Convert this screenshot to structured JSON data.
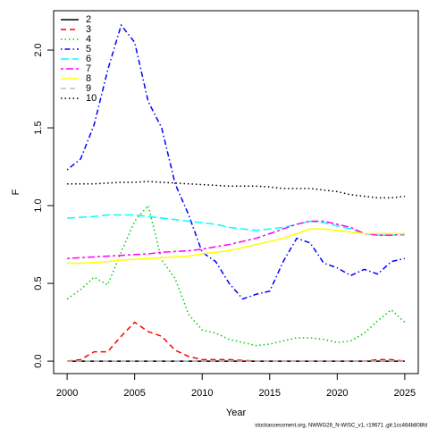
{
  "chart_data": {
    "type": "line",
    "xlabel": "Year",
    "ylabel": "F",
    "footer": "stockassessment.org, NWWG26_N-WISC_v1, r19671 ,git:1cc464b808fd",
    "x": [
      2000,
      2001,
      2002,
      2003,
      2004,
      2005,
      2006,
      2007,
      2008,
      2009,
      2010,
      2011,
      2012,
      2013,
      2014,
      2015,
      2016,
      2017,
      2018,
      2019,
      2020,
      2021,
      2022,
      2023,
      2024,
      2025
    ],
    "xlim": [
      1999,
      2026
    ],
    "xticks": [
      2000,
      2005,
      2010,
      2015,
      2020,
      2025
    ],
    "ylim": [
      -0.08,
      2.253
    ],
    "yticks": [
      {
        "value": 0,
        "label": "0.0"
      },
      {
        "value": 0.5,
        "label": "0.5"
      },
      {
        "value": 1,
        "label": "1.0"
      },
      {
        "value": 1.5,
        "label": "1.5"
      },
      {
        "value": 2,
        "label": "2.0"
      }
    ],
    "legend": "top-left",
    "series": [
      {
        "name": "2",
        "color": "#000000",
        "dash": "none",
        "values": [
          0,
          0,
          0,
          0,
          0,
          0,
          0,
          0,
          0,
          0,
          0,
          0,
          0,
          0,
          0,
          0,
          0,
          0,
          0,
          0,
          0,
          0,
          0,
          0,
          0,
          0
        ]
      },
      {
        "name": "3",
        "color": "#ff0000",
        "dash": "6,4",
        "values": [
          0,
          0.01,
          0.06,
          0.06,
          0.16,
          0.25,
          0.19,
          0.16,
          0.07,
          0.03,
          0.01,
          0.01,
          0.01,
          0.005,
          0,
          0,
          0,
          0,
          0,
          0,
          0,
          0,
          0,
          0.01,
          0.01,
          0
        ]
      },
      {
        "name": "4",
        "color": "#00cd00",
        "dash": "1.5,3",
        "values": [
          0.4,
          0.46,
          0.54,
          0.49,
          0.7,
          0.9,
          1.0,
          0.65,
          0.53,
          0.3,
          0.2,
          0.18,
          0.14,
          0.12,
          0.1,
          0.11,
          0.13,
          0.15,
          0.15,
          0.14,
          0.12,
          0.13,
          0.18,
          0.26,
          0.33,
          0.25
        ]
      },
      {
        "name": "5",
        "color": "#0000ff",
        "dash": "1.5,3,6,3",
        "values": [
          1.23,
          1.3,
          1.52,
          1.87,
          2.16,
          2.05,
          1.67,
          1.5,
          1.14,
          0.94,
          0.7,
          0.64,
          0.5,
          0.4,
          0.43,
          0.45,
          0.64,
          0.79,
          0.76,
          0.63,
          0.6,
          0.55,
          0.59,
          0.56,
          0.64,
          0.66
        ]
      },
      {
        "name": "6",
        "color": "#00ffff",
        "dash": "9,4",
        "values": [
          0.92,
          0.925,
          0.93,
          0.94,
          0.94,
          0.94,
          0.93,
          0.92,
          0.91,
          0.9,
          0.89,
          0.88,
          0.86,
          0.85,
          0.84,
          0.85,
          0.86,
          0.88,
          0.9,
          0.89,
          0.87,
          0.85,
          0.82,
          0.81,
          0.81,
          0.81
        ]
      },
      {
        "name": "7",
        "color": "#ff00ff",
        "dash": "3,3,8,3",
        "values": [
          0.66,
          0.665,
          0.67,
          0.675,
          0.68,
          0.685,
          0.69,
          0.7,
          0.705,
          0.71,
          0.72,
          0.735,
          0.75,
          0.77,
          0.79,
          0.82,
          0.85,
          0.88,
          0.9,
          0.9,
          0.88,
          0.86,
          0.82,
          0.81,
          0.81,
          0.82
        ]
      },
      {
        "name": "8",
        "color": "#ffff00",
        "dash": "none",
        "values": [
          0.63,
          0.63,
          0.635,
          0.64,
          0.65,
          0.655,
          0.66,
          0.665,
          0.67,
          0.675,
          0.69,
          0.7,
          0.71,
          0.73,
          0.75,
          0.77,
          0.79,
          0.82,
          0.85,
          0.85,
          0.84,
          0.83,
          0.82,
          0.82,
          0.82,
          0.82
        ]
      },
      {
        "name": "9",
        "color": "#bebebe",
        "dash": "6,4",
        "values": [
          0,
          0,
          0,
          0,
          0,
          0,
          0,
          0,
          0,
          0,
          0,
          0,
          0,
          0,
          0,
          0,
          0,
          0,
          0,
          0,
          0,
          0,
          0,
          0,
          0,
          0
        ]
      },
      {
        "name": "10",
        "color": "#000000",
        "dash": "1.5,3",
        "values": [
          1.14,
          1.14,
          1.14,
          1.145,
          1.15,
          1.15,
          1.155,
          1.15,
          1.145,
          1.14,
          1.135,
          1.13,
          1.125,
          1.125,
          1.125,
          1.12,
          1.11,
          1.11,
          1.11,
          1.1,
          1.09,
          1.07,
          1.06,
          1.05,
          1.05,
          1.06
        ]
      }
    ]
  }
}
